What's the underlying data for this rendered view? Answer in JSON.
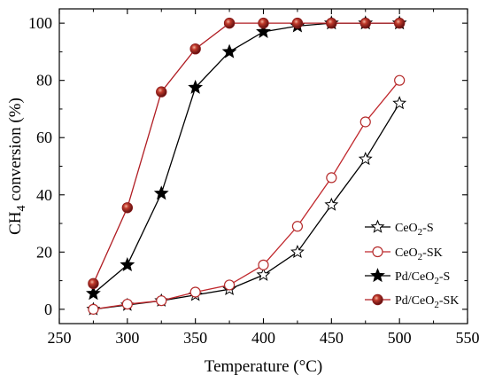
{
  "chart_data": {
    "type": "line",
    "title": "",
    "xlabel": "Temperature (°C)",
    "ylabel_main": "CH",
    "ylabel_sub": "4",
    "ylabel_rest": " conversion (%)",
    "xlim": [
      250,
      550
    ],
    "ylim": [
      -5,
      105
    ],
    "xticks": [
      250,
      300,
      350,
      400,
      450,
      500,
      550
    ],
    "yticks": [
      0,
      20,
      40,
      60,
      80,
      100
    ],
    "grid": false,
    "legend_position": "bottom-right",
    "series": [
      {
        "name_main": "CeO",
        "name_sub": "2",
        "name_rest": "-S",
        "marker": "star-open",
        "line_color": "#000000",
        "x": [
          275,
          300,
          325,
          350,
          375,
          400,
          425,
          450,
          475,
          500
        ],
        "y": [
          0,
          1.5,
          3,
          5,
          7,
          12,
          20,
          36.5,
          52.5,
          72
        ]
      },
      {
        "name_main": "CeO",
        "name_sub": "2",
        "name_rest": "-SK",
        "marker": "circle-open",
        "line_color": "#c0282d",
        "marker_color": "#b52b2b",
        "x": [
          275,
          300,
          325,
          350,
          375,
          400,
          425,
          450,
          475,
          500
        ],
        "y": [
          0,
          1.8,
          3,
          6,
          8.5,
          15.5,
          29,
          46,
          65.5,
          80
        ]
      },
      {
        "name_main": "Pd/CeO",
        "name_sub": "2",
        "name_rest": "-S",
        "marker": "star-filled",
        "line_color": "#000000",
        "x": [
          275,
          300,
          325,
          350,
          375,
          400,
          425,
          450,
          475,
          500
        ],
        "y": [
          5.5,
          15.5,
          40.5,
          77.5,
          90,
          97,
          99,
          100,
          100,
          100
        ]
      },
      {
        "name_main": "Pd/CeO",
        "name_sub": "2",
        "name_rest": "-SK",
        "marker": "sphere-filled",
        "line_color": "#b01c22",
        "marker_color": "#8b1a1a",
        "x": [
          275,
          300,
          325,
          350,
          375,
          400,
          425,
          450,
          475,
          500
        ],
        "y": [
          9,
          35.5,
          76,
          91,
          100,
          100,
          100,
          100,
          100,
          100
        ]
      }
    ]
  }
}
